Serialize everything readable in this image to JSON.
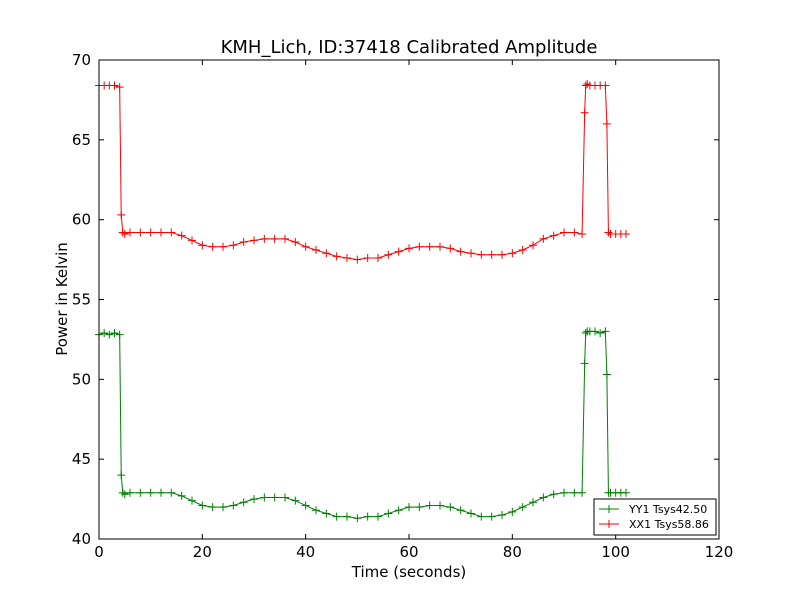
{
  "chart_data": {
    "type": "line",
    "title": "KMH_Lich, ID:37418 Calibrated Amplitude",
    "xlabel": "Time (seconds)",
    "ylabel": "Power in Kelvin",
    "xlim": [
      0,
      120
    ],
    "ylim": [
      40,
      70
    ],
    "xticks": [
      "0",
      "20",
      "40",
      "60",
      "80",
      "100",
      "120"
    ],
    "yticks": [
      "40",
      "45",
      "50",
      "55",
      "60",
      "65",
      "70"
    ],
    "grid": false,
    "legend_position": "lower-right",
    "marker": "plus",
    "series": [
      {
        "name": "YY1 Tsys42.50",
        "color": "#008000",
        "x": [
          0,
          1,
          2,
          3,
          4,
          4.3,
          4.6,
          5,
          6,
          8,
          10,
          12,
          14,
          16,
          18,
          20,
          22,
          24,
          26,
          28,
          30,
          32,
          34,
          36,
          38,
          40,
          42,
          44,
          46,
          48,
          50,
          52,
          54,
          56,
          58,
          60,
          62,
          64,
          66,
          68,
          70,
          72,
          74,
          76,
          78,
          80,
          82,
          84,
          86,
          88,
          90,
          92,
          93.5,
          94,
          94.2,
          94.5,
          95,
          96,
          97,
          98,
          98.3,
          98.6,
          99,
          100,
          101,
          102
        ],
        "y": [
          52.8,
          52.9,
          52.8,
          52.9,
          52.8,
          44.0,
          42.9,
          42.8,
          42.9,
          42.9,
          42.9,
          42.9,
          42.9,
          42.7,
          42.4,
          42.1,
          42.0,
          42.0,
          42.1,
          42.3,
          42.5,
          42.6,
          42.6,
          42.6,
          42.4,
          42.1,
          41.8,
          41.6,
          41.4,
          41.4,
          41.3,
          41.4,
          41.4,
          41.6,
          41.8,
          42.0,
          42.0,
          42.1,
          42.1,
          42.0,
          41.8,
          41.6,
          41.4,
          41.4,
          41.5,
          41.7,
          42.0,
          42.3,
          42.6,
          42.8,
          42.9,
          42.9,
          42.9,
          51.0,
          52.9,
          53.0,
          53.0,
          53.0,
          52.9,
          53.0,
          50.3,
          42.9,
          42.9,
          42.9,
          42.9,
          42.9
        ]
      },
      {
        "name": "XX1 Tsys58.86",
        "color": "#ff0000",
        "x": [
          0,
          1,
          2,
          3,
          4,
          4.3,
          4.6,
          5,
          6,
          8,
          10,
          12,
          14,
          16,
          18,
          20,
          22,
          24,
          26,
          28,
          30,
          32,
          34,
          36,
          38,
          40,
          42,
          44,
          46,
          48,
          50,
          52,
          54,
          56,
          58,
          60,
          62,
          64,
          66,
          68,
          70,
          72,
          74,
          76,
          78,
          80,
          82,
          84,
          86,
          88,
          90,
          92,
          93.5,
          94,
          94.2,
          94.5,
          95,
          96,
          97,
          98,
          98.3,
          98.6,
          99,
          100,
          101,
          102
        ],
        "y": [
          68.4,
          68.4,
          68.4,
          68.4,
          68.3,
          60.3,
          59.2,
          59.1,
          59.2,
          59.2,
          59.2,
          59.2,
          59.2,
          59.0,
          58.7,
          58.4,
          58.3,
          58.3,
          58.4,
          58.6,
          58.7,
          58.8,
          58.8,
          58.8,
          58.6,
          58.3,
          58.1,
          57.9,
          57.7,
          57.6,
          57.5,
          57.6,
          57.6,
          57.8,
          58.0,
          58.2,
          58.3,
          58.3,
          58.3,
          58.2,
          58.0,
          57.9,
          57.8,
          57.8,
          57.8,
          57.9,
          58.1,
          58.4,
          58.8,
          59.0,
          59.2,
          59.2,
          59.1,
          66.7,
          68.4,
          68.5,
          68.4,
          68.4,
          68.4,
          68.4,
          66.0,
          59.2,
          59.1,
          59.1,
          59.1,
          59.1
        ]
      }
    ]
  }
}
